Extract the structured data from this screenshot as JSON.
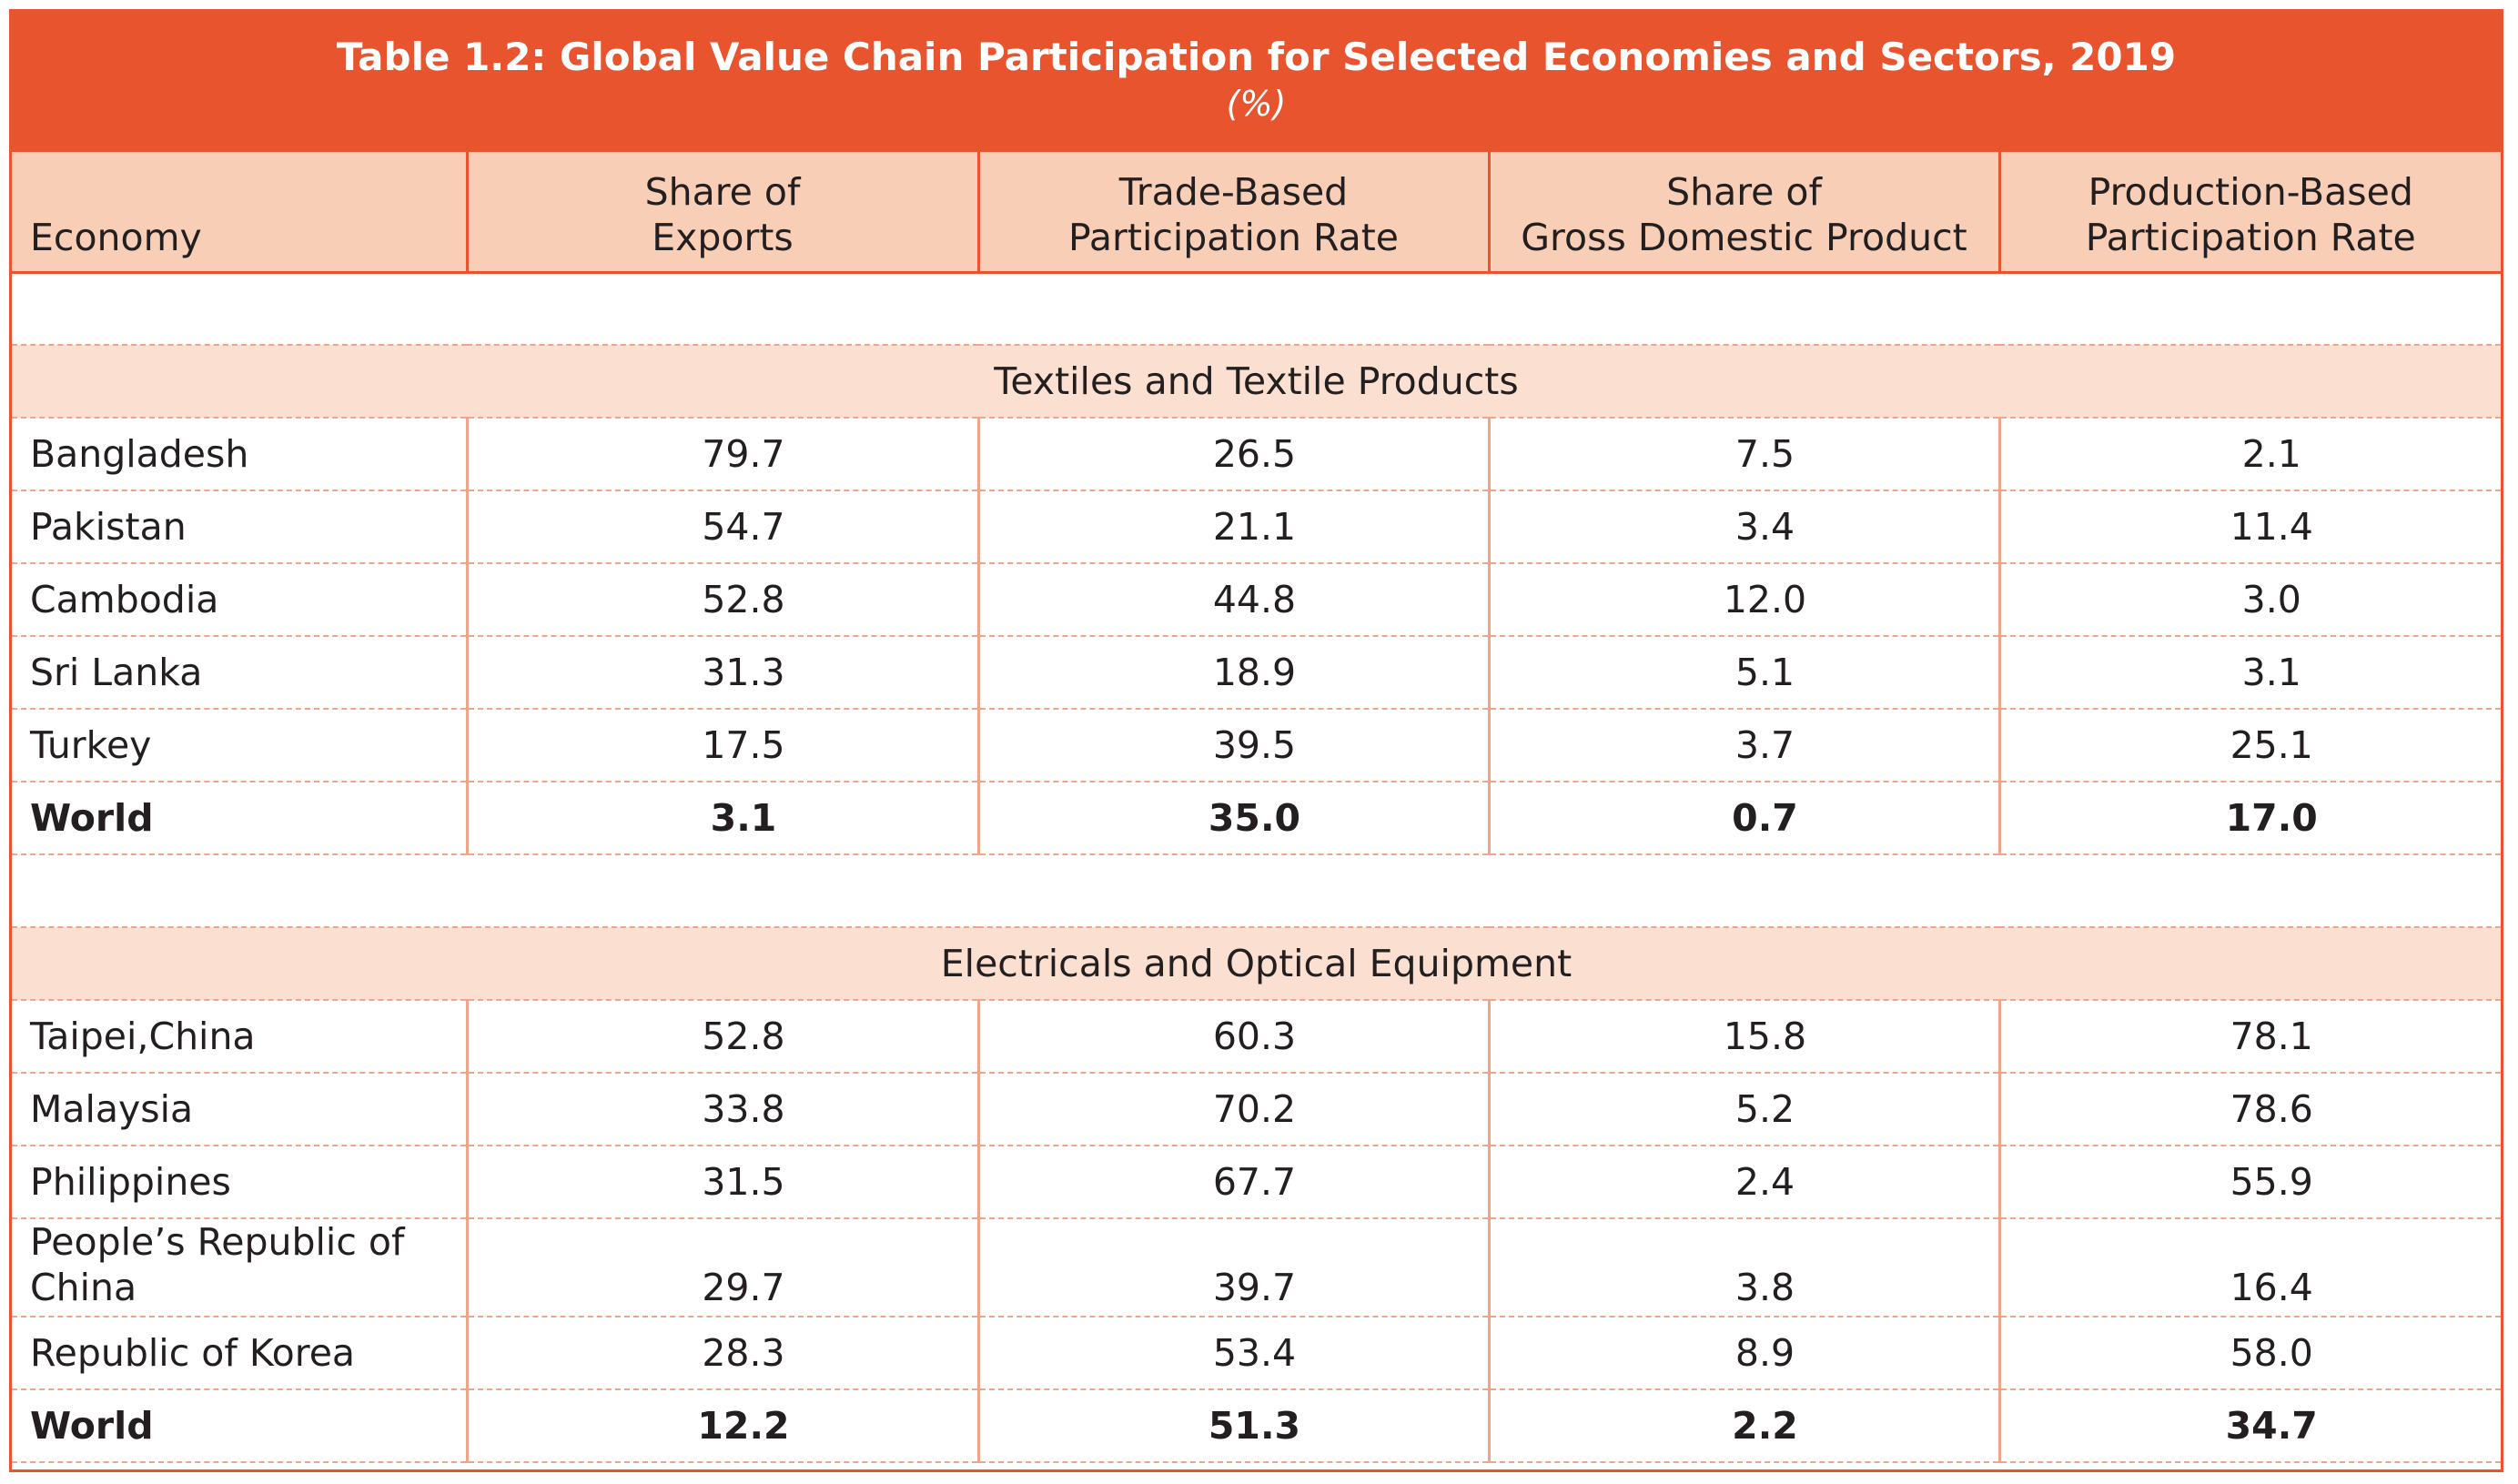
{
  "title": "Table 1.2: Global Value Chain Participation for Selected Economies and Sectors, 2019",
  "subtitle": "(%)",
  "columns": [
    "Economy",
    "Share of Exports",
    "Trade-Based Participation Rate",
    "Share of Gross Domestic Product",
    "Production-Based Participation Rate"
  ],
  "column_lines": [
    [
      "Economy"
    ],
    [
      "Share of",
      "Exports"
    ],
    [
      "Trade-Based",
      "Participation Rate"
    ],
    [
      "Share of",
      "Gross Domestic Product"
    ],
    [
      "Production-Based",
      "Participation Rate"
    ]
  ],
  "sections": [
    {
      "name": "Textiles and Textile Products",
      "rows": [
        {
          "economy": "Bangladesh",
          "values": [
            "79.7",
            "26.5",
            "7.5",
            "2.1"
          ],
          "bold": false
        },
        {
          "economy": "Pakistan",
          "values": [
            "54.7",
            "21.1",
            "3.4",
            "11.4"
          ],
          "bold": false
        },
        {
          "economy": "Cambodia",
          "values": [
            "52.8",
            "44.8",
            "12.0",
            "3.0"
          ],
          "bold": false
        },
        {
          "economy": "Sri Lanka",
          "values": [
            "31.3",
            "18.9",
            "5.1",
            "3.1"
          ],
          "bold": false
        },
        {
          "economy": "Turkey",
          "values": [
            "17.5",
            "39.5",
            "3.7",
            "25.1"
          ],
          "bold": false
        },
        {
          "economy": "World",
          "values": [
            "3.1",
            "35.0",
            "0.7",
            "17.0"
          ],
          "bold": true
        }
      ]
    },
    {
      "name": "Electricals and Optical Equipment",
      "rows": [
        {
          "economy": "Taipei,China",
          "values": [
            "52.8",
            "60.3",
            "15.8",
            "78.1"
          ],
          "bold": false
        },
        {
          "economy": "Malaysia",
          "values": [
            "33.8",
            "70.2",
            "5.2",
            "78.6"
          ],
          "bold": false
        },
        {
          "economy": "Philippines",
          "values": [
            "31.5",
            "67.7",
            "2.4",
            "55.9"
          ],
          "bold": false
        },
        {
          "economy": "People’s Republic of China",
          "economy_lines": [
            "People’s Republic of",
            "China"
          ],
          "values": [
            "29.7",
            "39.7",
            "3.8",
            "16.4"
          ],
          "bold": false
        },
        {
          "economy": "Republic of Korea",
          "values": [
            "28.3",
            "53.4",
            "8.9",
            "58.0"
          ],
          "bold": false
        },
        {
          "economy": "World",
          "values": [
            "12.2",
            "51.3",
            "2.2",
            "34.7"
          ],
          "bold": true
        }
      ]
    }
  ],
  "colors": {
    "accent": "#e8542e",
    "header_bg": "#f8cfb6",
    "section_bg": "#fbe0d1"
  }
}
